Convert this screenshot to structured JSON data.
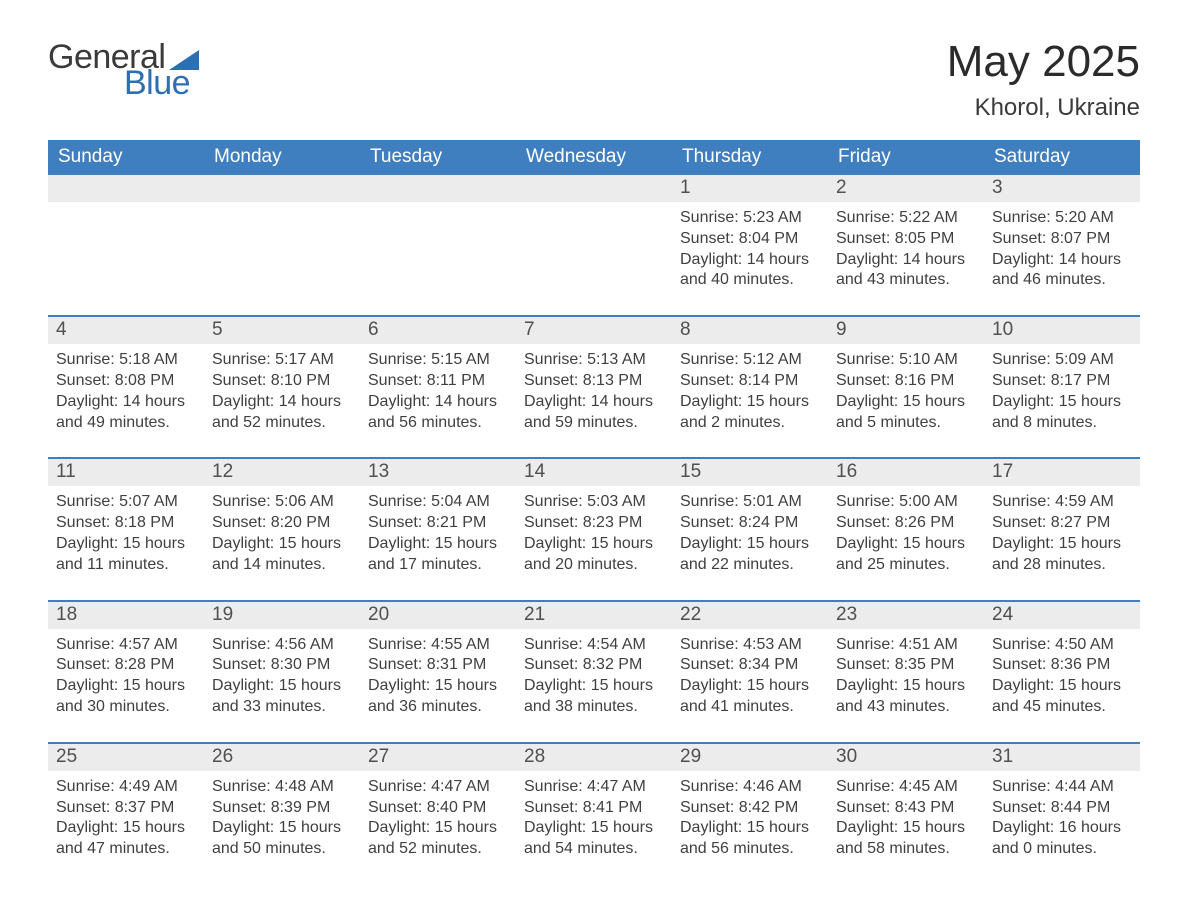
{
  "brand": {
    "word1": "General",
    "word2": "Blue"
  },
  "title": "May 2025",
  "location": "Khorol, Ukraine",
  "colors": {
    "header_bg": "#3f7fbf",
    "header_text": "#ffffff",
    "daynum_bg": "#ececec",
    "text": "#404040",
    "rule": "#3f7fbf",
    "brand_blue": "#2c6fb3"
  },
  "fonts": {
    "title_size": 44,
    "location_size": 24,
    "header_size": 19,
    "body_size": 16
  },
  "day_headers": [
    "Sunday",
    "Monday",
    "Tuesday",
    "Wednesday",
    "Thursday",
    "Friday",
    "Saturday"
  ],
  "weeks": [
    [
      null,
      null,
      null,
      null,
      {
        "n": "1",
        "sunrise": "Sunrise: 5:23 AM",
        "sunset": "Sunset: 8:04 PM",
        "dl1": "Daylight: 14 hours",
        "dl2": "and 40 minutes."
      },
      {
        "n": "2",
        "sunrise": "Sunrise: 5:22 AM",
        "sunset": "Sunset: 8:05 PM",
        "dl1": "Daylight: 14 hours",
        "dl2": "and 43 minutes."
      },
      {
        "n": "3",
        "sunrise": "Sunrise: 5:20 AM",
        "sunset": "Sunset: 8:07 PM",
        "dl1": "Daylight: 14 hours",
        "dl2": "and 46 minutes."
      }
    ],
    [
      {
        "n": "4",
        "sunrise": "Sunrise: 5:18 AM",
        "sunset": "Sunset: 8:08 PM",
        "dl1": "Daylight: 14 hours",
        "dl2": "and 49 minutes."
      },
      {
        "n": "5",
        "sunrise": "Sunrise: 5:17 AM",
        "sunset": "Sunset: 8:10 PM",
        "dl1": "Daylight: 14 hours",
        "dl2": "and 52 minutes."
      },
      {
        "n": "6",
        "sunrise": "Sunrise: 5:15 AM",
        "sunset": "Sunset: 8:11 PM",
        "dl1": "Daylight: 14 hours",
        "dl2": "and 56 minutes."
      },
      {
        "n": "7",
        "sunrise": "Sunrise: 5:13 AM",
        "sunset": "Sunset: 8:13 PM",
        "dl1": "Daylight: 14 hours",
        "dl2": "and 59 minutes."
      },
      {
        "n": "8",
        "sunrise": "Sunrise: 5:12 AM",
        "sunset": "Sunset: 8:14 PM",
        "dl1": "Daylight: 15 hours",
        "dl2": "and 2 minutes."
      },
      {
        "n": "9",
        "sunrise": "Sunrise: 5:10 AM",
        "sunset": "Sunset: 8:16 PM",
        "dl1": "Daylight: 15 hours",
        "dl2": "and 5 minutes."
      },
      {
        "n": "10",
        "sunrise": "Sunrise: 5:09 AM",
        "sunset": "Sunset: 8:17 PM",
        "dl1": "Daylight: 15 hours",
        "dl2": "and 8 minutes."
      }
    ],
    [
      {
        "n": "11",
        "sunrise": "Sunrise: 5:07 AM",
        "sunset": "Sunset: 8:18 PM",
        "dl1": "Daylight: 15 hours",
        "dl2": "and 11 minutes."
      },
      {
        "n": "12",
        "sunrise": "Sunrise: 5:06 AM",
        "sunset": "Sunset: 8:20 PM",
        "dl1": "Daylight: 15 hours",
        "dl2": "and 14 minutes."
      },
      {
        "n": "13",
        "sunrise": "Sunrise: 5:04 AM",
        "sunset": "Sunset: 8:21 PM",
        "dl1": "Daylight: 15 hours",
        "dl2": "and 17 minutes."
      },
      {
        "n": "14",
        "sunrise": "Sunrise: 5:03 AM",
        "sunset": "Sunset: 8:23 PM",
        "dl1": "Daylight: 15 hours",
        "dl2": "and 20 minutes."
      },
      {
        "n": "15",
        "sunrise": "Sunrise: 5:01 AM",
        "sunset": "Sunset: 8:24 PM",
        "dl1": "Daylight: 15 hours",
        "dl2": "and 22 minutes."
      },
      {
        "n": "16",
        "sunrise": "Sunrise: 5:00 AM",
        "sunset": "Sunset: 8:26 PM",
        "dl1": "Daylight: 15 hours",
        "dl2": "and 25 minutes."
      },
      {
        "n": "17",
        "sunrise": "Sunrise: 4:59 AM",
        "sunset": "Sunset: 8:27 PM",
        "dl1": "Daylight: 15 hours",
        "dl2": "and 28 minutes."
      }
    ],
    [
      {
        "n": "18",
        "sunrise": "Sunrise: 4:57 AM",
        "sunset": "Sunset: 8:28 PM",
        "dl1": "Daylight: 15 hours",
        "dl2": "and 30 minutes."
      },
      {
        "n": "19",
        "sunrise": "Sunrise: 4:56 AM",
        "sunset": "Sunset: 8:30 PM",
        "dl1": "Daylight: 15 hours",
        "dl2": "and 33 minutes."
      },
      {
        "n": "20",
        "sunrise": "Sunrise: 4:55 AM",
        "sunset": "Sunset: 8:31 PM",
        "dl1": "Daylight: 15 hours",
        "dl2": "and 36 minutes."
      },
      {
        "n": "21",
        "sunrise": "Sunrise: 4:54 AM",
        "sunset": "Sunset: 8:32 PM",
        "dl1": "Daylight: 15 hours",
        "dl2": "and 38 minutes."
      },
      {
        "n": "22",
        "sunrise": "Sunrise: 4:53 AM",
        "sunset": "Sunset: 8:34 PM",
        "dl1": "Daylight: 15 hours",
        "dl2": "and 41 minutes."
      },
      {
        "n": "23",
        "sunrise": "Sunrise: 4:51 AM",
        "sunset": "Sunset: 8:35 PM",
        "dl1": "Daylight: 15 hours",
        "dl2": "and 43 minutes."
      },
      {
        "n": "24",
        "sunrise": "Sunrise: 4:50 AM",
        "sunset": "Sunset: 8:36 PM",
        "dl1": "Daylight: 15 hours",
        "dl2": "and 45 minutes."
      }
    ],
    [
      {
        "n": "25",
        "sunrise": "Sunrise: 4:49 AM",
        "sunset": "Sunset: 8:37 PM",
        "dl1": "Daylight: 15 hours",
        "dl2": "and 47 minutes."
      },
      {
        "n": "26",
        "sunrise": "Sunrise: 4:48 AM",
        "sunset": "Sunset: 8:39 PM",
        "dl1": "Daylight: 15 hours",
        "dl2": "and 50 minutes."
      },
      {
        "n": "27",
        "sunrise": "Sunrise: 4:47 AM",
        "sunset": "Sunset: 8:40 PM",
        "dl1": "Daylight: 15 hours",
        "dl2": "and 52 minutes."
      },
      {
        "n": "28",
        "sunrise": "Sunrise: 4:47 AM",
        "sunset": "Sunset: 8:41 PM",
        "dl1": "Daylight: 15 hours",
        "dl2": "and 54 minutes."
      },
      {
        "n": "29",
        "sunrise": "Sunrise: 4:46 AM",
        "sunset": "Sunset: 8:42 PM",
        "dl1": "Daylight: 15 hours",
        "dl2": "and 56 minutes."
      },
      {
        "n": "30",
        "sunrise": "Sunrise: 4:45 AM",
        "sunset": "Sunset: 8:43 PM",
        "dl1": "Daylight: 15 hours",
        "dl2": "and 58 minutes."
      },
      {
        "n": "31",
        "sunrise": "Sunrise: 4:44 AM",
        "sunset": "Sunset: 8:44 PM",
        "dl1": "Daylight: 16 hours",
        "dl2": "and 0 minutes."
      }
    ]
  ]
}
